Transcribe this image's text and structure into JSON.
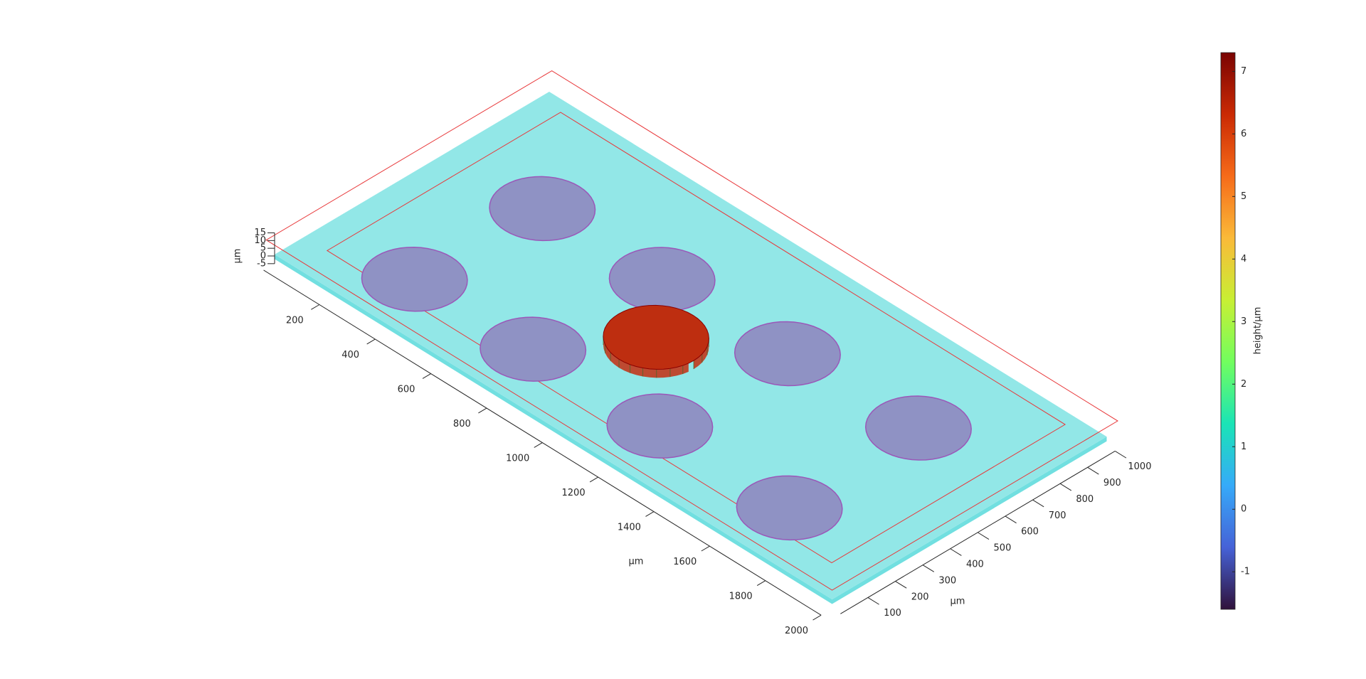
{
  "chart_data": {
    "type": "surface3d",
    "xlabel": "µm",
    "ylabel": "µm",
    "zlabel": "µm",
    "xlim": [
      0,
      2000
    ],
    "ylim": [
      0,
      1000
    ],
    "zlim": [
      -5,
      15
    ],
    "xticks": [
      200,
      400,
      600,
      800,
      1000,
      1200,
      1400,
      1600,
      1800,
      2000
    ],
    "yticks": [
      100,
      200,
      300,
      400,
      500,
      600,
      700,
      800,
      900,
      1000
    ],
    "zticks": [
      -5,
      0,
      5,
      10,
      15
    ],
    "colorbar_label": "height/µm",
    "clim": [
      -1.6,
      7.3
    ],
    "cticks": [
      -1,
      0,
      1,
      2,
      3,
      4,
      5,
      6,
      7
    ],
    "colormap": [
      "#30123b",
      "#4662d7",
      "#36aaf9",
      "#1ae4b6",
      "#72fe5e",
      "#c8ef34",
      "#faba39",
      "#f66b19",
      "#ca2a04",
      "#7a0403"
    ],
    "background_height": 1,
    "x": [
      325,
      310,
      745,
      725,
      940,
      1185,
      1175,
      1635,
      1645
    ],
    "y": [
      645,
      195,
      655,
      205,
      435,
      665,
      210,
      685,
      205
    ],
    "z": [
      -1,
      -1,
      -1,
      -1,
      6.5,
      -1,
      -1,
      -1,
      -1
    ]
  }
}
